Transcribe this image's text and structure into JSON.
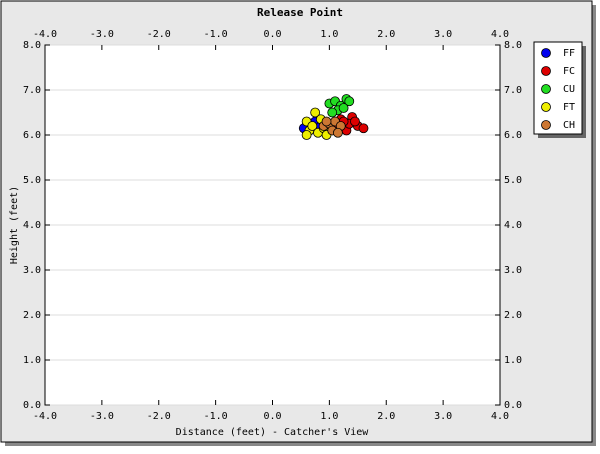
{
  "chart_data": {
    "type": "scatter",
    "title": "Release Point",
    "x_label": "Distance (feet) - Catcher's View",
    "y_label": "Height (feet)",
    "xlim": [
      -4,
      4
    ],
    "ylim": [
      0,
      8
    ],
    "xticks": [
      {
        "value": -4,
        "label": "-4.0"
      },
      {
        "value": -3,
        "label": "-3.0"
      },
      {
        "value": -2,
        "label": "-2.0"
      },
      {
        "value": -1,
        "label": "-1.0"
      },
      {
        "value": 0,
        "label": "0.0"
      },
      {
        "value": 1,
        "label": "1.0"
      },
      {
        "value": 2,
        "label": "2.0"
      },
      {
        "value": 3,
        "label": "3.0"
      },
      {
        "value": 4,
        "label": "4.0"
      }
    ],
    "yticks": [
      {
        "value": 0,
        "label": "0.0"
      },
      {
        "value": 1,
        "label": "1.0"
      },
      {
        "value": 2,
        "label": "2.0"
      },
      {
        "value": 3,
        "label": "3.0"
      },
      {
        "value": 4,
        "label": "4.0"
      },
      {
        "value": 5,
        "label": "5.0"
      },
      {
        "value": 6,
        "label": "6.0"
      },
      {
        "value": 7,
        "label": "7.0"
      },
      {
        "value": 8,
        "label": "8.0"
      }
    ],
    "grid": true,
    "legend": "top-right",
    "series": [
      {
        "name": "FF",
        "color": "#0000ee",
        "x": [
          0.55,
          0.75,
          0.85
        ],
        "y": [
          6.15,
          6.3,
          6.2
        ]
      },
      {
        "name": "FC",
        "color": "#dd0000",
        "x": [
          1.1,
          1.2,
          1.3,
          1.4,
          1.5,
          1.6,
          1.35,
          1.25,
          1.45,
          1.15
        ],
        "y": [
          6.2,
          6.35,
          6.1,
          6.4,
          6.2,
          6.15,
          6.25,
          6.3,
          6.3,
          6.15
        ]
      },
      {
        "name": "CU",
        "color": "#22dd22",
        "x": [
          1.0,
          1.1,
          1.2,
          1.3,
          1.35,
          1.15,
          1.05,
          1.25
        ],
        "y": [
          6.7,
          6.75,
          6.65,
          6.8,
          6.75,
          6.55,
          6.5,
          6.6
        ]
      },
      {
        "name": "FT",
        "color": "#eeee00",
        "x": [
          0.6,
          0.65,
          0.75,
          0.7,
          0.8,
          0.85,
          0.9,
          0.95,
          0.6
        ],
        "y": [
          6.3,
          6.1,
          6.5,
          6.2,
          6.05,
          6.35,
          6.15,
          6.0,
          6.0
        ]
      },
      {
        "name": "CH",
        "color": "#cc7733",
        "x": [
          0.9,
          1.0,
          1.05,
          1.1,
          1.2,
          1.15,
          0.95
        ],
        "y": [
          6.2,
          6.25,
          6.1,
          6.3,
          6.2,
          6.05,
          6.3
        ]
      }
    ]
  }
}
